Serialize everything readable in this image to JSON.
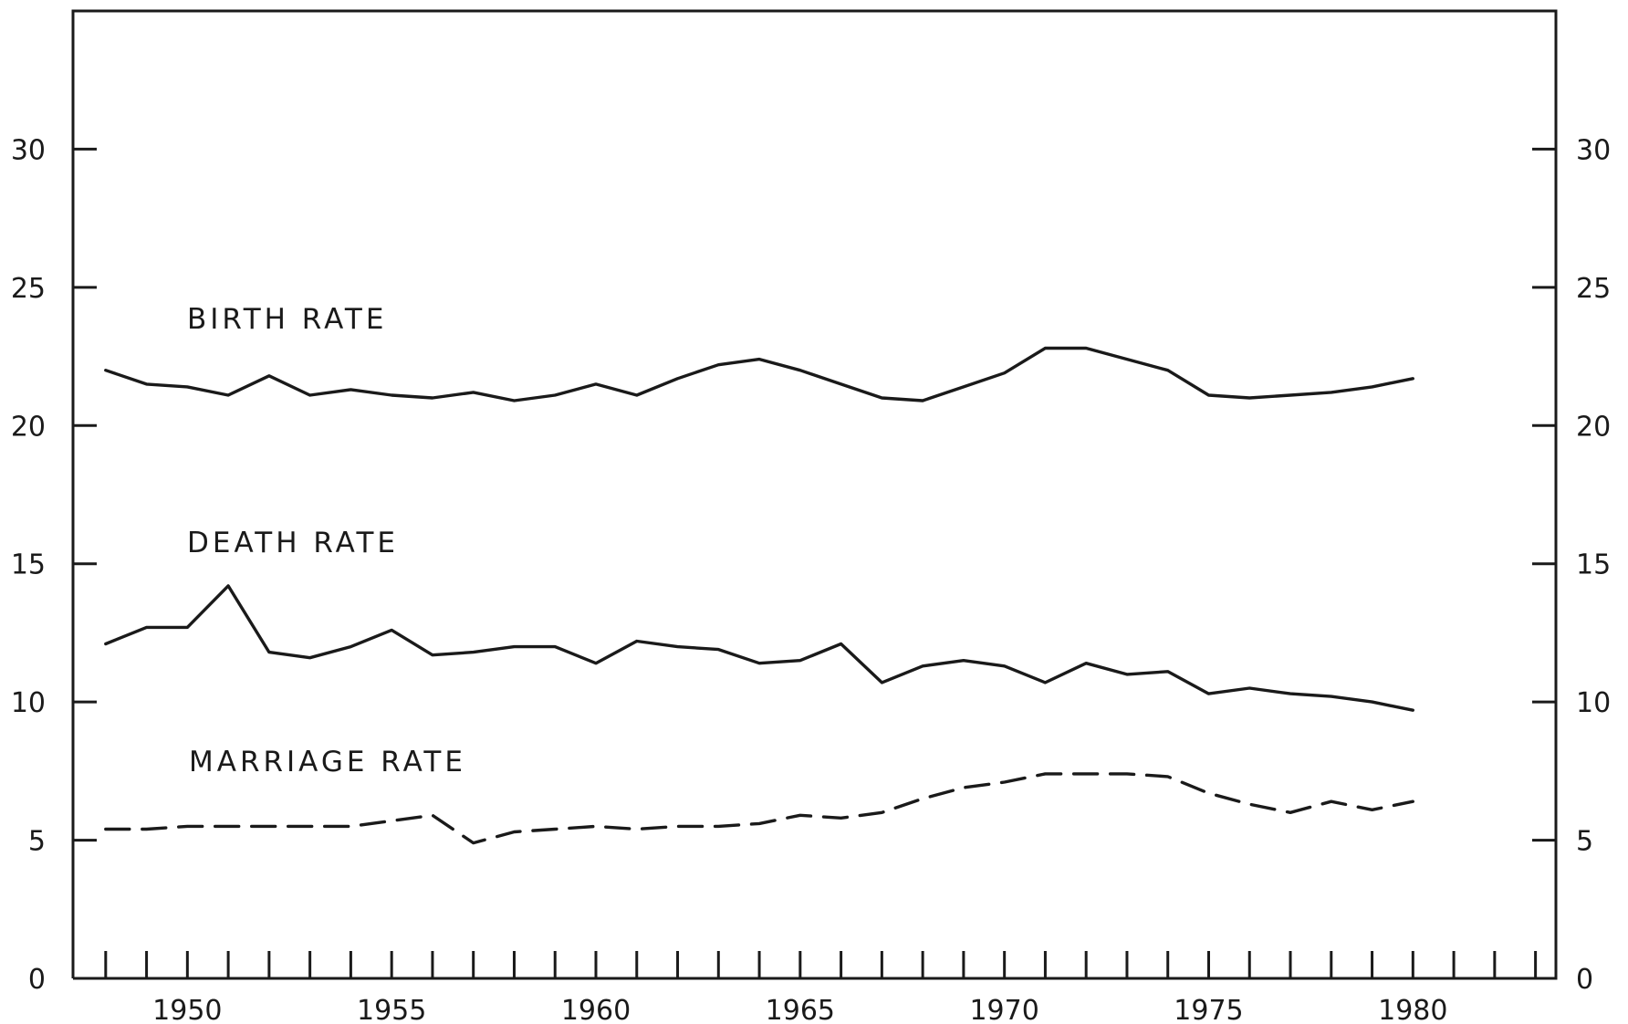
{
  "chart_data": {
    "type": "line",
    "title": "",
    "xlabel": "",
    "ylabel": "",
    "xlim": [
      1947.2,
      1983.5
    ],
    "ylim": [
      0,
      35
    ],
    "x_ticks": [
      1950,
      1955,
      1960,
      1965,
      1970,
      1975,
      1980
    ],
    "x_minor_ticks_every": 1,
    "x_minor_ticks_range": [
      1948,
      1983
    ],
    "y_ticks": [
      0,
      5,
      10,
      15,
      20,
      25,
      30
    ],
    "y_axis_left": true,
    "y_axis_right": true,
    "grid": false,
    "legend": "none",
    "series": [
      {
        "name": "BIRTH RATE",
        "style": "solid",
        "x": [
          1948,
          1949,
          1950,
          1951,
          1952,
          1953,
          1954,
          1955,
          1956,
          1957,
          1958,
          1959,
          1960,
          1961,
          1962,
          1963,
          1964,
          1965,
          1966,
          1967,
          1968,
          1969,
          1970,
          1971,
          1972,
          1973,
          1974,
          1975,
          1976,
          1977,
          1978,
          1979,
          1980
        ],
        "values": [
          22.0,
          21.5,
          21.4,
          21.1,
          21.8,
          21.1,
          21.3,
          21.1,
          21.0,
          21.2,
          20.9,
          21.1,
          21.5,
          21.1,
          21.7,
          22.2,
          22.4,
          22.0,
          21.5,
          21.0,
          20.9,
          21.4,
          21.9,
          22.8,
          22.8,
          22.4,
          22.0,
          21.1,
          21.0,
          21.1,
          21.2,
          21.4,
          21.7
        ]
      },
      {
        "name": "DEATH RATE",
        "style": "solid",
        "x": [
          1948,
          1949,
          1950,
          1951,
          1952,
          1953,
          1954,
          1955,
          1956,
          1957,
          1958,
          1959,
          1960,
          1961,
          1962,
          1963,
          1964,
          1965,
          1966,
          1967,
          1968,
          1969,
          1970,
          1971,
          1972,
          1973,
          1974,
          1975,
          1976,
          1977,
          1978,
          1979,
          1980
        ],
        "values": [
          12.1,
          12.7,
          12.7,
          14.2,
          11.8,
          11.6,
          12.0,
          12.6,
          11.7,
          11.8,
          12.0,
          12.0,
          11.4,
          12.2,
          12.0,
          11.9,
          11.4,
          11.5,
          12.1,
          10.7,
          11.3,
          11.5,
          11.3,
          10.7,
          11.4,
          11.0,
          11.1,
          10.3,
          10.5,
          10.3,
          10.2,
          10.0,
          9.7
        ]
      },
      {
        "name": "MARRIAGE RATE",
        "style": "dashed",
        "x": [
          1948,
          1949,
          1950,
          1951,
          1952,
          1953,
          1954,
          1955,
          1956,
          1957,
          1958,
          1959,
          1960,
          1961,
          1962,
          1963,
          1964,
          1965,
          1966,
          1967,
          1968,
          1969,
          1970,
          1971,
          1972,
          1973,
          1974,
          1975,
          1976,
          1977,
          1978,
          1979,
          1980
        ],
        "values": [
          5.4,
          5.4,
          5.5,
          5.5,
          5.5,
          5.5,
          5.5,
          5.7,
          5.9,
          4.9,
          5.3,
          5.4,
          5.5,
          5.4,
          5.5,
          5.5,
          5.6,
          5.9,
          5.8,
          6.0,
          6.5,
          6.9,
          7.1,
          7.4,
          7.4,
          7.4,
          7.3,
          6.7,
          6.3,
          6.0,
          6.4,
          6.1,
          6.4
        ]
      }
    ],
    "annotations": [
      {
        "text": "BIRTH RATE",
        "series": "BIRTH RATE"
      },
      {
        "text": "DEATH RATE",
        "series": "DEATH RATE"
      },
      {
        "text": "MARRIAGE RATE",
        "series": "MARRIAGE RATE"
      }
    ]
  }
}
